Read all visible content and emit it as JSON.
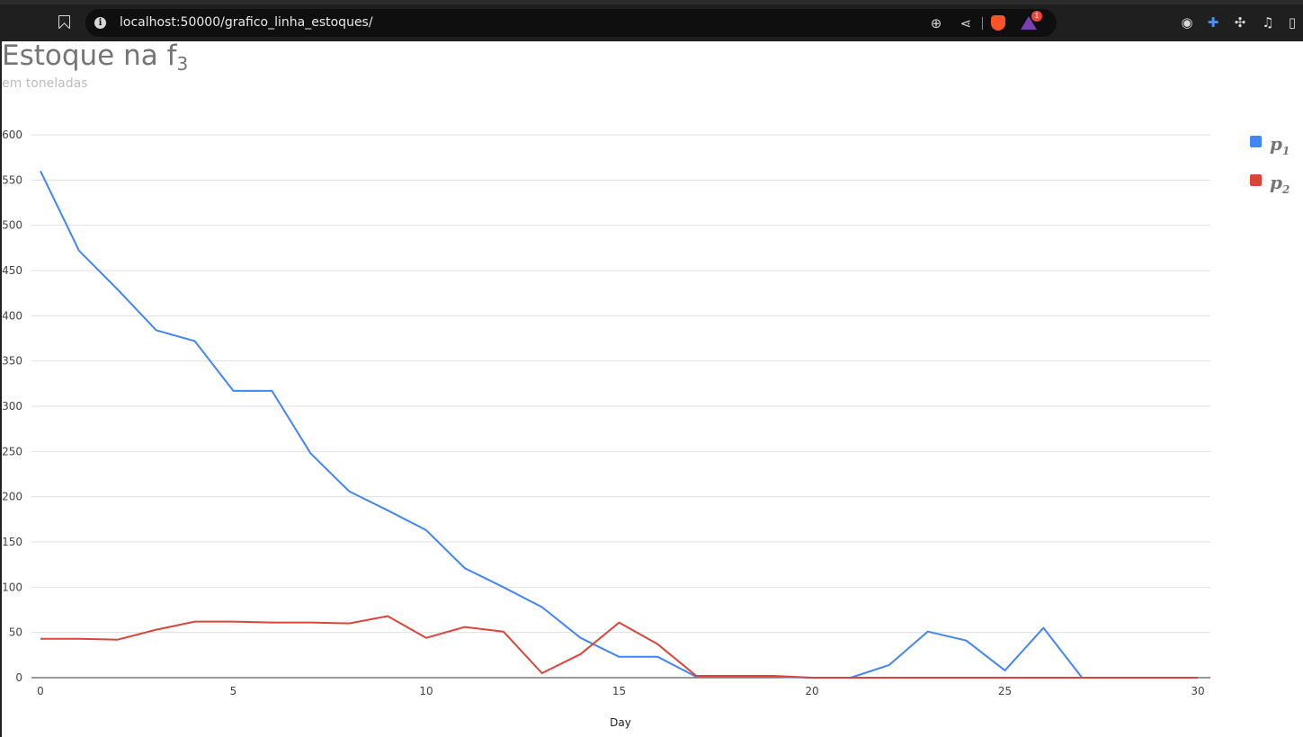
{
  "browser": {
    "url": "localhost:50000/grafico_linha_estoques/",
    "icons": [
      "bookmark-icon",
      "site-info-icon",
      "zoom-icon",
      "share-icon",
      "brave-shields-icon",
      "brave-rewards-icon",
      "extension-icon",
      "extensions-puzzle-icon",
      "media-icon",
      "sidebar-icon"
    ],
    "rewards_badge": "1"
  },
  "chart_data": {
    "type": "line",
    "title": "Estoque na f",
    "title_subscript": "3",
    "subtitle": "em toneladas",
    "xlabel": "Day",
    "ylabel": "",
    "xlim": [
      0,
      30
    ],
    "ylim": [
      0,
      600
    ],
    "xticks": [
      0,
      5,
      10,
      15,
      20,
      25,
      30
    ],
    "yticks": [
      0,
      50,
      100,
      150,
      200,
      250,
      300,
      350,
      400,
      450,
      500,
      550,
      600
    ],
    "grid": true,
    "legend_position": "right",
    "x": [
      0,
      1,
      2,
      3,
      4,
      5,
      6,
      7,
      8,
      9,
      10,
      11,
      12,
      13,
      14,
      15,
      16,
      17,
      18,
      19,
      20,
      21,
      22,
      23,
      24,
      25,
      26,
      27,
      28,
      29,
      30
    ],
    "series": [
      {
        "name": "p",
        "name_subscript": "1",
        "color": "#4285f4",
        "values": [
          560,
          472,
          429,
          384,
          372,
          317,
          317,
          248,
          206,
          185,
          163,
          121,
          100,
          78,
          44,
          23,
          23,
          1,
          1,
          1,
          0,
          0,
          14,
          51,
          41,
          8,
          55,
          0,
          0,
          0,
          0
        ]
      },
      {
        "name": "p",
        "name_subscript": "2",
        "color": "#db4437",
        "values": [
          43,
          43,
          42,
          53,
          62,
          62,
          61,
          61,
          60,
          68,
          44,
          56,
          51,
          5,
          26,
          61,
          37,
          2,
          2,
          2,
          0,
          0,
          0,
          0,
          0,
          0,
          0,
          0,
          0,
          0,
          0
        ]
      }
    ]
  }
}
